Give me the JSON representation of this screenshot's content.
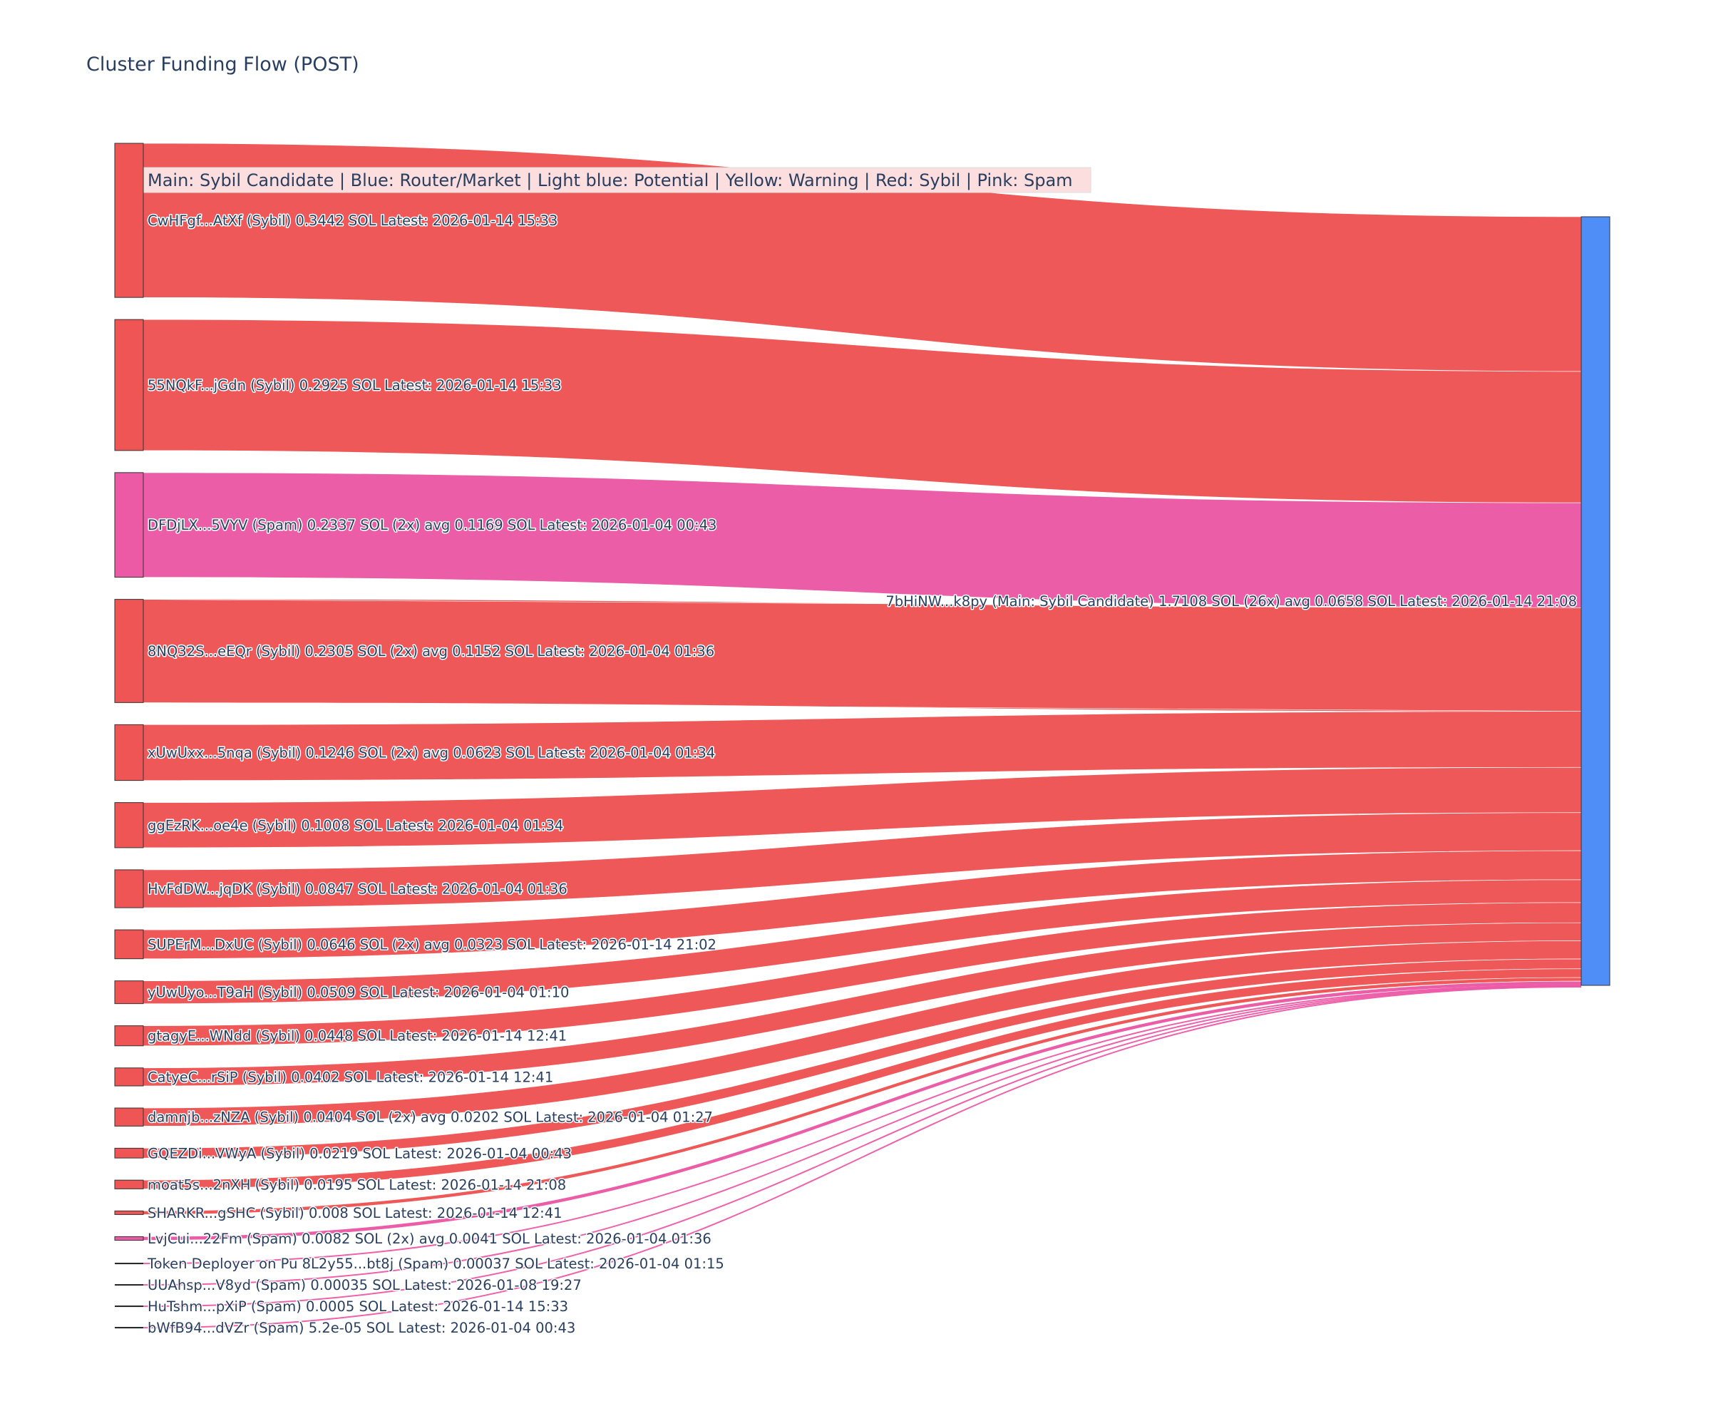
{
  "chart_data": {
    "type": "sankey",
    "title": "Cluster Funding Flow (POST)",
    "legend_note": "Main: Sybil Candidate  |  Blue: Router/Market | Light blue: Potential | Yellow: Warning | Red: Sybil | Pink: Spam",
    "colors": {
      "Sybil": "#ef5555",
      "Spam": "#ec5aa6",
      "Main": "#4f8ef7",
      "legend_bg": "#fcdede"
    },
    "target": {
      "name": "7bHiNW...k8py",
      "category": "Main",
      "label": "7bHiNW...k8py (Main: Sybil Candidate) 1.7108 SOL (26x) avg 0.0658 SOL Latest: 2026-01-14 21:08",
      "value": 1.7108
    },
    "sources": [
      {
        "name": "CwHFgf...AtXf",
        "category": "Sybil",
        "value": 0.3442,
        "label": "CwHFgf...AtXf (Sybil) 0.3442 SOL Latest: 2026-01-14 15:33"
      },
      {
        "name": "55NQkF...jGdn",
        "category": "Sybil",
        "value": 0.2925,
        "label": "55NQkF...jGdn (Sybil) 0.2925 SOL Latest: 2026-01-14 15:33"
      },
      {
        "name": "DFDjLX...5VYV",
        "category": "Spam",
        "value": 0.2337,
        "label": "DFDjLX...5VYV (Spam) 0.2337 SOL (2x) avg 0.1169 SOL Latest: 2026-01-04 00:43"
      },
      {
        "name": "8NQ32S...eEQr",
        "category": "Sybil",
        "value": 0.2305,
        "label": "8NQ32S...eEQr (Sybil) 0.2305 SOL (2x) avg 0.1152 SOL Latest: 2026-01-04 01:36"
      },
      {
        "name": "xUwUxx...5nqa",
        "category": "Sybil",
        "value": 0.1246,
        "label": "xUwUxx...5nqa (Sybil) 0.1246 SOL (2x) avg 0.0623 SOL Latest: 2026-01-04 01:34"
      },
      {
        "name": "ggEzRK...oe4e",
        "category": "Sybil",
        "value": 0.1008,
        "label": "ggEzRK...oe4e (Sybil) 0.1008 SOL Latest: 2026-01-04 01:34"
      },
      {
        "name": "HvFdDW...jqDK",
        "category": "Sybil",
        "value": 0.0847,
        "label": "HvFdDW...jqDK (Sybil) 0.0847 SOL Latest: 2026-01-04 01:36"
      },
      {
        "name": "SUPErM...DxUC",
        "category": "Sybil",
        "value": 0.0646,
        "label": "SUPErM...DxUC (Sybil) 0.0646 SOL (2x) avg 0.0323 SOL Latest: 2026-01-14 21:02"
      },
      {
        "name": "yUwUyo...T9aH",
        "category": "Sybil",
        "value": 0.0509,
        "label": "yUwUyo...T9aH (Sybil) 0.0509 SOL Latest: 2026-01-04 01:10"
      },
      {
        "name": "gtagyE...WNdd",
        "category": "Sybil",
        "value": 0.0448,
        "label": "gtagyE...WNdd (Sybil) 0.0448 SOL Latest: 2026-01-14 12:41"
      },
      {
        "name": "CatyeC...rSiP",
        "category": "Sybil",
        "value": 0.0402,
        "label": "CatyeC...rSiP (Sybil) 0.0402 SOL Latest: 2026-01-14 12:41"
      },
      {
        "name": "damnjb...zNZA",
        "category": "Sybil",
        "value": 0.0404,
        "label": "damnjb...zNZA (Sybil) 0.0404 SOL (2x) avg 0.0202 SOL Latest: 2026-01-04 01:27"
      },
      {
        "name": "GQEZDi...VWyA",
        "category": "Sybil",
        "value": 0.0219,
        "label": "GQEZDi...VWyA (Sybil) 0.0219 SOL Latest: 2026-01-04 00:43"
      },
      {
        "name": "moat5s...2nXH",
        "category": "Sybil",
        "value": 0.0195,
        "label": "moat5s...2nXH (Sybil) 0.0195 SOL Latest: 2026-01-14 21:08"
      },
      {
        "name": "SHARKR...gSHC",
        "category": "Sybil",
        "value": 0.008,
        "label": "SHARKR...gSHC (Sybil) 0.008 SOL Latest: 2026-01-14 12:41"
      },
      {
        "name": "LvjCui...22Fm",
        "category": "Spam",
        "value": 0.0082,
        "label": "LvjCui...22Fm (Spam) 0.0082 SOL (2x) avg 0.0041 SOL Latest: 2026-01-04 01:36"
      },
      {
        "name": "8L2y55...bt8j",
        "category": "Spam",
        "value": 0.00037,
        "label": "Token Deployer on Pu 8L2y55...bt8j (Spam) 0.00037 SOL Latest: 2026-01-04 01:15"
      },
      {
        "name": "UUAhsp...V8yd",
        "category": "Spam",
        "value": 0.00035,
        "label": "UUAhsp...V8yd (Spam) 0.00035 SOL Latest: 2026-01-08 19:27"
      },
      {
        "name": "HuTshm...pXiP",
        "category": "Spam",
        "value": 0.0005,
        "label": "HuTshm...pXiP (Spam) 0.0005 SOL Latest: 2026-01-14 15:33"
      },
      {
        "name": "bWfB94...dVZr",
        "category": "Spam",
        "value": 5.2e-05,
        "label": "bWfB94...dVZr (Spam) 5.2e-05 SOL Latest: 2026-01-04 00:43"
      }
    ]
  }
}
